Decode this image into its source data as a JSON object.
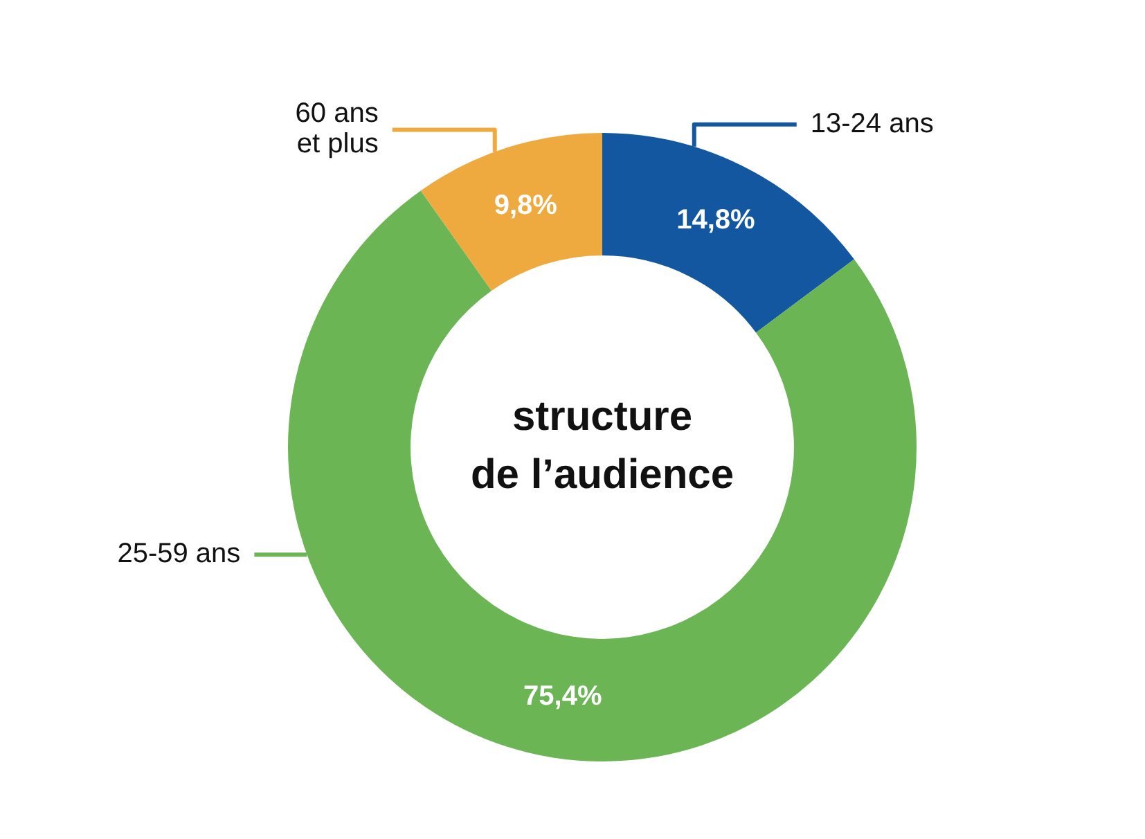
{
  "chart_data": {
    "type": "donut",
    "title": "structure de l’audience",
    "categories": [
      "13-24 ans",
      "25-59 ans",
      "60 ans et plus"
    ],
    "values": [
      14.8,
      75.4,
      9.8
    ],
    "colors": [
      "#1257a0",
      "#6bb555",
      "#eeaa3f"
    ],
    "value_labels": [
      "14,8%",
      "75,4%",
      "9,8%"
    ],
    "legend": false
  }
}
